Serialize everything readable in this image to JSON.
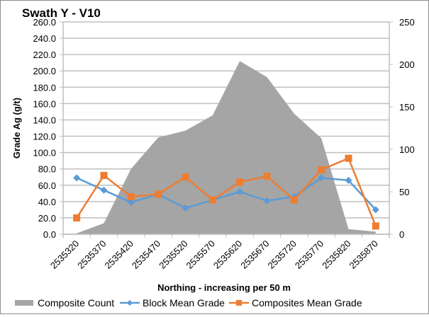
{
  "chart_data": {
    "type": "area+line",
    "title": "Swath Y - V10",
    "xlabel": "Northing - increasing per 50 m",
    "ylabel": "Grade Ag (g/t)",
    "y2label": "",
    "categories": [
      "2535320",
      "2535370",
      "2535420",
      "2535470",
      "2535520",
      "2535570",
      "2535620",
      "2535670",
      "2535720",
      "2535770",
      "2535820",
      "2535870"
    ],
    "ylim": [
      0,
      260
    ],
    "y_ticks": [
      "0.0",
      "20.0",
      "40.0",
      "60.0",
      "80.0",
      "100.0",
      "120.0",
      "140.0",
      "160.0",
      "180.0",
      "200.0",
      "220.0",
      "240.0",
      "260.0"
    ],
    "y2lim": [
      0,
      250
    ],
    "y2_ticks": [
      "0",
      "50",
      "100",
      "150",
      "200",
      "250"
    ],
    "grid": true,
    "legend_position": "bottom",
    "series": [
      {
        "name": "Composite Count",
        "kind": "area",
        "axis": "secondary",
        "color": "#a5a5a5",
        "values": [
          1,
          13,
          77,
          114,
          122,
          140,
          204,
          185,
          142,
          113,
          6,
          3
        ]
      },
      {
        "name": "Block Mean Grade",
        "kind": "line",
        "axis": "primary",
        "color": "#5b9bd5",
        "marker": "diamond",
        "values": [
          69,
          54,
          39,
          49,
          32,
          42,
          52,
          41,
          46,
          69,
          66,
          30
        ]
      },
      {
        "name": "Composites Mean Grade",
        "kind": "line",
        "axis": "primary",
        "color": "#ed7d31",
        "marker": "square",
        "values": [
          20,
          72,
          46,
          49,
          70,
          42,
          64,
          71,
          42,
          79,
          93,
          10
        ]
      }
    ]
  }
}
